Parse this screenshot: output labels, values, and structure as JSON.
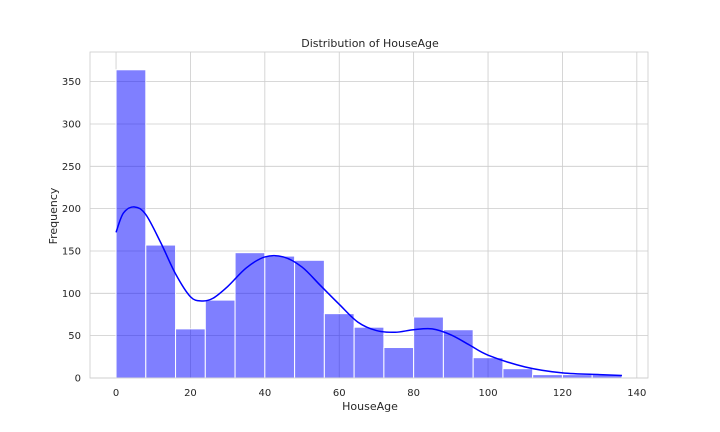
{
  "chart_data": {
    "type": "bar",
    "title": "Distribution of HouseAge",
    "xlabel": "HouseAge",
    "ylabel": "Frequency",
    "xlim": [
      -7,
      143
    ],
    "ylim": [
      0,
      385
    ],
    "xticks": [
      0,
      20,
      40,
      60,
      80,
      100,
      120,
      140
    ],
    "yticks": [
      0,
      50,
      100,
      150,
      200,
      250,
      300,
      350
    ],
    "bin_edges": [
      0,
      8,
      16,
      24,
      32,
      40,
      48,
      56,
      64,
      72,
      80,
      88,
      96,
      104,
      112,
      120,
      128,
      136
    ],
    "values": [
      364,
      157,
      58,
      92,
      148,
      144,
      139,
      76,
      60,
      36,
      72,
      57,
      24,
      11,
      4,
      4,
      4
    ],
    "bar_color": "#0000ff",
    "bar_opacity": 0.5,
    "kde_color": "#0000ff",
    "kde": {
      "x": [
        0,
        2,
        5,
        8,
        12,
        16,
        20,
        23,
        26,
        30,
        35,
        40,
        45,
        50,
        55,
        60,
        65,
        70,
        75,
        80,
        85,
        90,
        95,
        100,
        110,
        120,
        130,
        136
      ],
      "y": [
        172,
        195,
        202,
        193,
        160,
        123,
        96,
        91,
        94,
        108,
        130,
        143,
        143,
        131,
        109,
        87,
        66,
        56,
        54,
        57,
        58,
        51,
        39,
        27,
        13,
        6,
        4,
        3
      ]
    },
    "grid": true
  }
}
